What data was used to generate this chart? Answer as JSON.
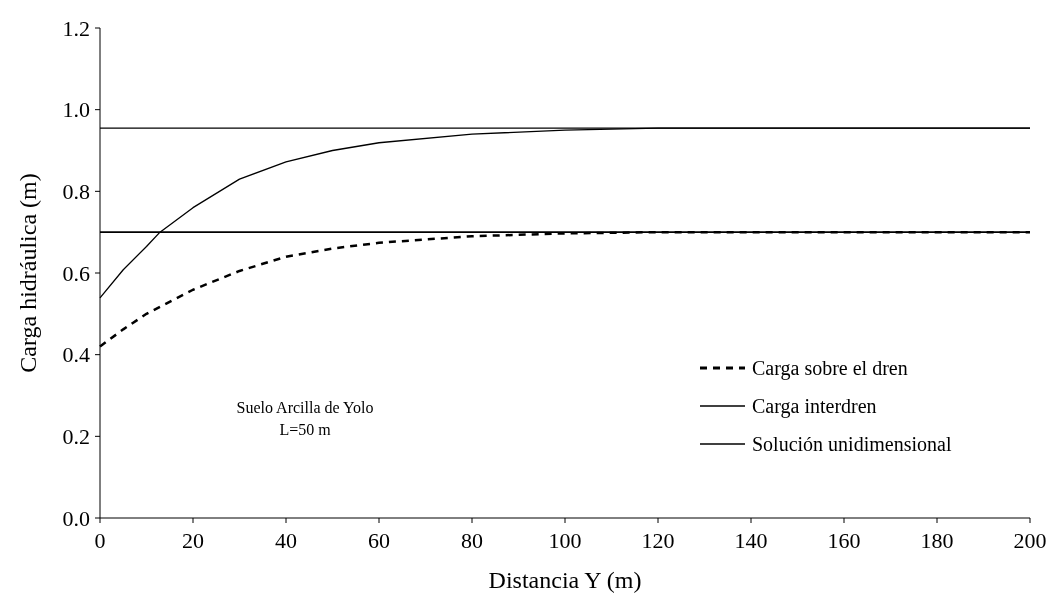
{
  "chart_data": {
    "type": "line",
    "xlabel": "Distancia Y (m)",
    "ylabel": "Carga hidráulica (m)",
    "xlim": [
      0,
      200
    ],
    "xticks": [
      0,
      20,
      40,
      60,
      80,
      100,
      120,
      140,
      160,
      180,
      200
    ],
    "ylim": [
      0,
      1.2
    ],
    "yticks": [
      {
        "value": 0,
        "label": "0.0"
      },
      0.2,
      0.4,
      0.6,
      0.8,
      {
        "value": 1,
        "label": "1.0"
      },
      1.2
    ],
    "grid": false,
    "legend": "right",
    "annotations": [
      "Suelo Arcilla de Yolo",
      "L=50 m"
    ],
    "series": [
      {
        "name": "Carga sobre el dren",
        "color": "#000000",
        "line_style": "dashed",
        "x": [
          0,
          5,
          10,
          20,
          30,
          40,
          50,
          60,
          80,
          100,
          120,
          150,
          200
        ],
        "values": [
          0.42,
          0.462,
          0.5,
          0.559,
          0.605,
          0.64,
          0.66,
          0.674,
          0.69,
          0.697,
          0.7,
          0.7,
          0.7
        ]
      },
      {
        "name": "Carga interdren",
        "color": "#000000",
        "line_style": "solid",
        "x": [
          0,
          5,
          10,
          12.9,
          20,
          30,
          40,
          50,
          60,
          80,
          100,
          120,
          150,
          200
        ],
        "values": [
          0.539,
          0.608,
          0.665,
          0.7,
          0.76,
          0.83,
          0.872,
          0.9,
          0.919,
          0.94,
          0.95,
          0.955,
          0.955,
          0.955
        ]
      },
      {
        "name": "Solución unidimensional",
        "color": "#000000",
        "line_style": "solid",
        "x": [
          0,
          200
        ],
        "values": [
          0.955,
          0.955
        ]
      },
      {
        "color": "#000000",
        "line_style": "solid",
        "x": [
          0,
          200
        ],
        "values": [
          0.7,
          0.7
        ]
      }
    ]
  }
}
